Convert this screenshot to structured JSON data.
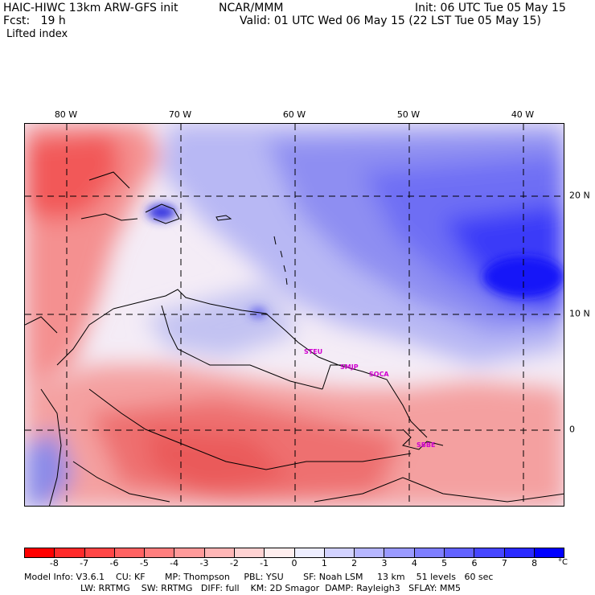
{
  "header": {
    "model": "HAIC-HIWC 13km ARW-GFS init",
    "org": "NCAR/MMM",
    "init": "Init: 06 UTC Tue 05 May 15",
    "fcst": "Fcst:   19 h",
    "valid": "Valid: 01 UTC Wed 06 May 15 (22 LST Tue 05 May 15)",
    "field": "Lifted index"
  },
  "axes": {
    "lon_labels": [
      "80 W",
      "70 W",
      "60 W",
      "50 W",
      "40 W"
    ],
    "lat_labels": [
      "20 N",
      "10 N",
      "0"
    ]
  },
  "places": [
    "STEU",
    "SMJP",
    "SOCA",
    "SBBE"
  ],
  "colorbar": {
    "unit": "°C",
    "ticks": [
      "-8",
      "-7",
      "-6",
      "-5",
      "-4",
      "-3",
      "-2",
      "-1",
      "0",
      "1",
      "2",
      "3",
      "4",
      "5",
      "6",
      "7",
      "8"
    ],
    "colors": [
      "#ff0000",
      "#ff2a2a",
      "#ff4646",
      "#ff6262",
      "#ff7e7e",
      "#ff9a9a",
      "#ffb6b6",
      "#ffd2d2",
      "#ffeeee",
      "#eeeeff",
      "#d2d2ff",
      "#b6b6ff",
      "#9a9aff",
      "#7e7eff",
      "#6262ff",
      "#4646ff",
      "#2a2aff",
      "#0000ff"
    ]
  },
  "footer": {
    "line1": "Model Info: V3.6.1    CU: KF       MP: Thompson     PBL: YSU       SF: Noah LSM     13 km    51 levels   60 sec",
    "line2": "LW: RRTMG    SW: RRTMG   DIFF: full    KM: 2D Smagor  DAMP: Rayleigh3   SFLAY: MM5"
  }
}
